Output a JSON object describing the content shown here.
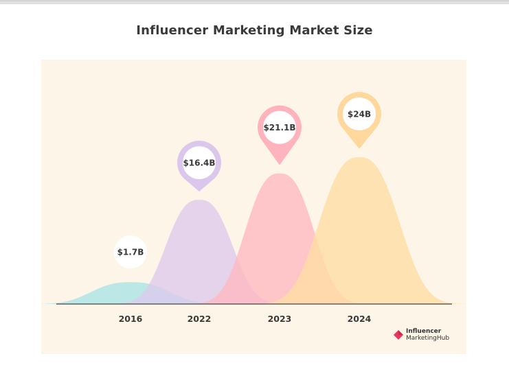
{
  "title": "Influencer Marketing Market Size",
  "brand": {
    "line1": "Influencer",
    "line2": "MarketingHub",
    "color": "#e8385f"
  },
  "colors": {
    "background": "#fdf6e8",
    "axis": "#444444",
    "text": "#3a3a3a"
  },
  "chart_data": {
    "type": "area",
    "title": "Influencer Marketing Market Size",
    "xlabel": "",
    "ylabel": "",
    "categories": [
      "2016",
      "2022",
      "2023",
      "2024"
    ],
    "values": [
      1.7,
      16.4,
      21.1,
      24
    ],
    "data_labels": [
      "$1.7B",
      "$16.4B",
      "$21.1B",
      "$24B"
    ],
    "unit": "billion USD",
    "ylim": [
      0,
      24
    ],
    "colors": [
      "#a8e4e6",
      "#ddc9ec",
      "#ffb8c0",
      "#ffdca3"
    ],
    "pin_colors": [
      "#a8e4e6",
      "#dcc7ec",
      "#ffb4bd",
      "#ffd89e"
    ],
    "grid": false,
    "legend": "none"
  }
}
